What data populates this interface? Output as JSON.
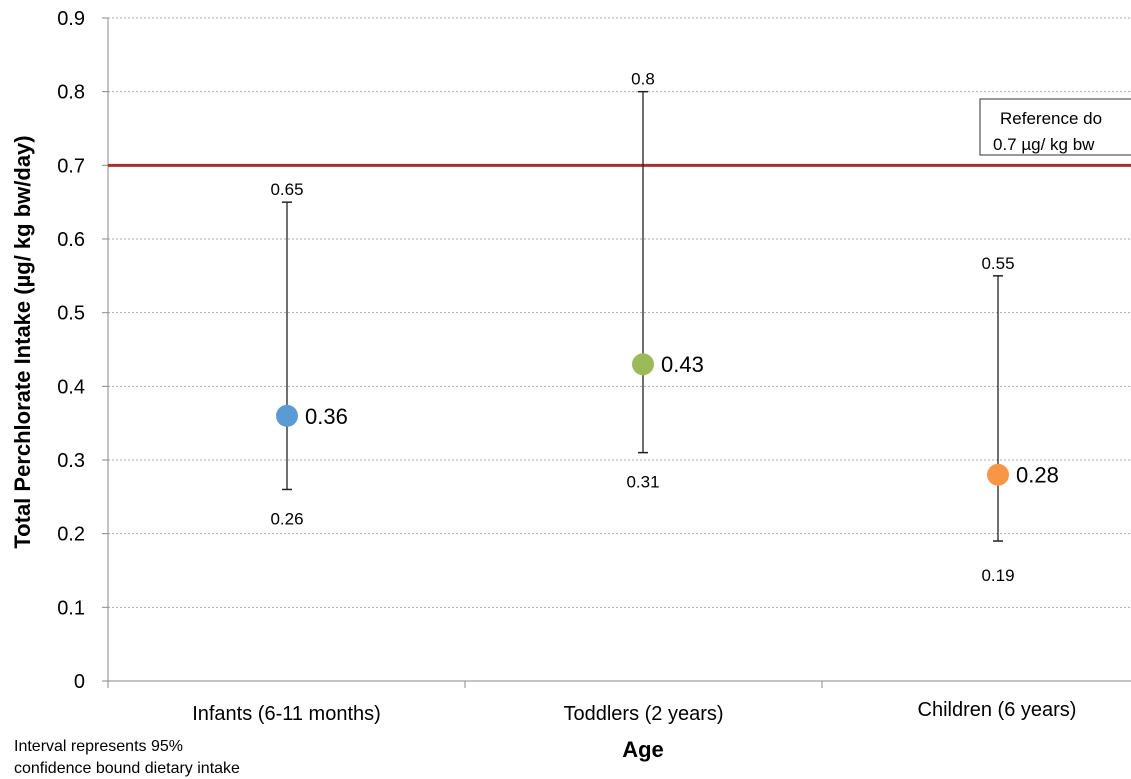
{
  "chart_data": {
    "type": "scatter",
    "title": "",
    "xlabel": "Age",
    "ylabel": "Total Perchlorate Intake (µg/ kg bw/day)",
    "ylim": [
      0,
      0.9
    ],
    "yticks": [
      "0",
      "0.1",
      "0.2",
      "0.3",
      "0.4",
      "0.5",
      "0.6",
      "0.7",
      "0.8",
      "0.9"
    ],
    "grid": true,
    "categories": [
      "Infants (6-11 months)",
      "Toddlers (2 years)",
      "Children (6 years)"
    ],
    "points": [
      {
        "category": "Infants (6-11 months)",
        "value": 0.36,
        "value_label": "0.36",
        "lower": 0.26,
        "lower_label": "0.26",
        "upper": 0.65,
        "upper_label": "0.65",
        "color": "#5B9BD5"
      },
      {
        "category": "Toddlers (2 years)",
        "value": 0.43,
        "value_label": "0.43",
        "lower": 0.31,
        "lower_label": "0.31",
        "upper": 0.8,
        "upper_label": "0.8",
        "color": "#9BBB59"
      },
      {
        "category": "Children (6 years)",
        "value": 0.28,
        "value_label": "0.28",
        "lower": 0.19,
        "lower_label": "0.19",
        "upper": 0.55,
        "upper_label": "0.55",
        "color": "#F79646"
      }
    ],
    "reference_line": {
      "value": 0.7,
      "color": "#A5342E",
      "label_lines": [
        "Reference do",
        "0.7 µg/ kg bw"
      ]
    },
    "note_lines": [
      "Interval represents 95%",
      "confidence bound dietary intake"
    ]
  }
}
